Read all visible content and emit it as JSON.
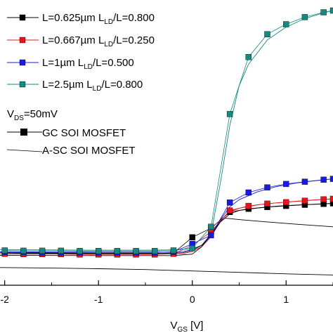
{
  "chart_data": {
    "type": "line",
    "xlabel": {
      "main": "V",
      "sub": "GS",
      "unit": " [V]"
    },
    "xlim": [
      -2.05,
      1.5
    ],
    "ylim": [
      0,
      1
    ],
    "x_ticks": [
      {
        "value": -2,
        "label": "-2"
      },
      {
        "value": -1,
        "label": "-1"
      },
      {
        "value": 0,
        "label": "0"
      },
      {
        "value": 1,
        "label": "1"
      }
    ],
    "series": [
      {
        "id": "s1",
        "name": "L=0.625µm L_LD/L=0.800",
        "name_parts": [
          "L=0.625",
          "µ",
          "m L",
          "LD",
          "/L=0.800"
        ],
        "color": "#000000",
        "x": [
          -2.0,
          -1.8,
          -1.6,
          -1.4,
          -1.2,
          -1.0,
          -0.8,
          -0.6,
          -0.4,
          -0.2,
          0.0,
          0.2,
          0.4,
          0.6,
          0.8,
          1.0,
          1.2,
          1.4,
          1.5
        ],
        "y": [
          0.113,
          0.112,
          0.112,
          0.111,
          0.111,
          0.111,
          0.111,
          0.111,
          0.111,
          0.113,
          0.168,
          0.2,
          0.257,
          0.268,
          0.274,
          0.278,
          0.282,
          0.285,
          0.287
        ]
      },
      {
        "id": "s2",
        "name": "L=0.667µm L_LD/L=0.250",
        "name_parts": [
          "L=0.667",
          "µ",
          "m L",
          "LD",
          "/L=0.250"
        ],
        "color": "#e8141c",
        "x": [
          -2.0,
          -1.8,
          -1.6,
          -1.4,
          -1.2,
          -1.0,
          -0.8,
          -0.6,
          -0.4,
          -0.2,
          0.0,
          0.2,
          0.4,
          0.6,
          0.8,
          1.0,
          1.2,
          1.4,
          1.5
        ],
        "y": [
          0.11,
          0.109,
          0.109,
          0.109,
          0.108,
          0.108,
          0.108,
          0.108,
          0.108,
          0.11,
          0.14,
          0.188,
          0.262,
          0.278,
          0.286,
          0.291,
          0.296,
          0.301,
          0.303
        ]
      },
      {
        "id": "s3",
        "name": "L=1µm L_LD/L=0.500",
        "name_parts": [
          "L=1",
          "µ",
          "m L",
          "LD",
          "/L=0.500"
        ],
        "color": "#1a1ae6",
        "x": [
          -2.0,
          -1.8,
          -1.6,
          -1.4,
          -1.2,
          -1.0,
          -0.8,
          -0.6,
          -0.4,
          -0.2,
          0.0,
          0.2,
          0.4,
          0.6,
          0.8,
          1.0,
          1.2,
          1.4,
          1.5
        ],
        "y": [
          0.116,
          0.116,
          0.115,
          0.115,
          0.115,
          0.115,
          0.115,
          0.115,
          0.115,
          0.117,
          0.145,
          0.175,
          0.29,
          0.325,
          0.343,
          0.355,
          0.363,
          0.37,
          0.373
        ]
      },
      {
        "id": "s4",
        "name": "L=2.5µm L_LD/L=0.800",
        "name_parts": [
          "L=2.5",
          "µ",
          "m L",
          "LD",
          "/L=0.800"
        ],
        "color": "#148a80",
        "x": [
          -2.0,
          -1.8,
          -1.6,
          -1.4,
          -1.2,
          -1.0,
          -0.8,
          -0.6,
          -0.4,
          -0.2,
          0.0,
          0.2,
          0.4,
          0.6,
          0.8,
          1.0,
          1.2,
          1.4,
          1.5
        ],
        "y": [
          0.122,
          0.121,
          0.121,
          0.121,
          0.12,
          0.12,
          0.12,
          0.12,
          0.12,
          0.122,
          0.13,
          0.205,
          0.6,
          0.8,
          0.88,
          0.915,
          0.94,
          0.957,
          0.963
        ]
      }
    ],
    "reference_curves": [
      {
        "id": "r1",
        "color": "#148a80",
        "x": [
          -2.05,
          -1.0,
          -0.5,
          -0.2,
          0.0,
          0.1,
          0.2,
          0.3,
          0.35,
          0.4,
          0.5,
          0.6,
          0.8,
          1.0,
          1.2,
          1.4,
          1.5
        ],
        "y": [
          0.125,
          0.123,
          0.123,
          0.124,
          0.128,
          0.14,
          0.18,
          0.36,
          0.46,
          0.56,
          0.7,
          0.775,
          0.86,
          0.905,
          0.935,
          0.955,
          0.963
        ]
      },
      {
        "id": "r2",
        "color": "#1a1ae6",
        "x": [
          -2.05,
          -1.0,
          -0.3,
          -0.1,
          0.0,
          0.1,
          0.2,
          0.3,
          0.4,
          0.5,
          0.7,
          0.9,
          1.1,
          1.3,
          1.5
        ],
        "y": [
          0.117,
          0.116,
          0.116,
          0.118,
          0.125,
          0.14,
          0.17,
          0.23,
          0.275,
          0.3,
          0.328,
          0.346,
          0.358,
          0.366,
          0.373
        ]
      },
      {
        "id": "r3",
        "color": "#e8141c",
        "x": [
          -2.05,
          -1.0,
          -0.3,
          -0.1,
          0.0,
          0.1,
          0.2,
          0.3,
          0.4,
          0.5,
          0.7,
          0.9,
          1.1,
          1.3,
          1.5
        ],
        "y": [
          0.11,
          0.109,
          0.109,
          0.111,
          0.118,
          0.135,
          0.17,
          0.225,
          0.258,
          0.27,
          0.282,
          0.289,
          0.294,
          0.299,
          0.303
        ]
      },
      {
        "id": "r4",
        "color": "#000000",
        "x": [
          -2.05,
          -1.0,
          -0.3,
          -0.1,
          0.0,
          0.1,
          0.2,
          0.3,
          0.4,
          0.5,
          0.7,
          0.9,
          1.1,
          1.3,
          1.5
        ],
        "y": [
          0.114,
          0.112,
          0.112,
          0.114,
          0.122,
          0.14,
          0.175,
          0.222,
          0.25,
          0.262,
          0.271,
          0.277,
          0.281,
          0.284,
          0.287
        ]
      },
      {
        "id": "r5",
        "color": "#000000",
        "x": [
          -2.05,
          -1.0,
          -0.2,
          0.0,
          0.1,
          0.2,
          0.3,
          0.35,
          0.5,
          0.8,
          1.1,
          1.5
        ],
        "y": [
          0.105,
          0.104,
          0.104,
          0.109,
          0.135,
          0.18,
          0.225,
          0.235,
          0.23,
          0.222,
          0.214,
          0.205
        ]
      },
      {
        "id": "r6",
        "color": "#000000",
        "x": [
          -2.05,
          -1.5,
          -1.0,
          -0.5,
          0.0,
          0.5,
          1.0,
          1.5
        ],
        "y": [
          0.062,
          0.06,
          0.058,
          0.055,
          0.05,
          0.045,
          0.04,
          0.036
        ]
      }
    ],
    "condition": {
      "main": "V",
      "sub": "DS",
      "rest": "=50mV"
    },
    "legend_styles": [
      {
        "label": "GC SOI MOSFET",
        "style": "line-with-square-marker",
        "color": "#000000"
      },
      {
        "label": "A-SC SOI MOSFET",
        "style": "thin-line",
        "color": "#000000"
      }
    ],
    "legend_position": "top-left"
  }
}
